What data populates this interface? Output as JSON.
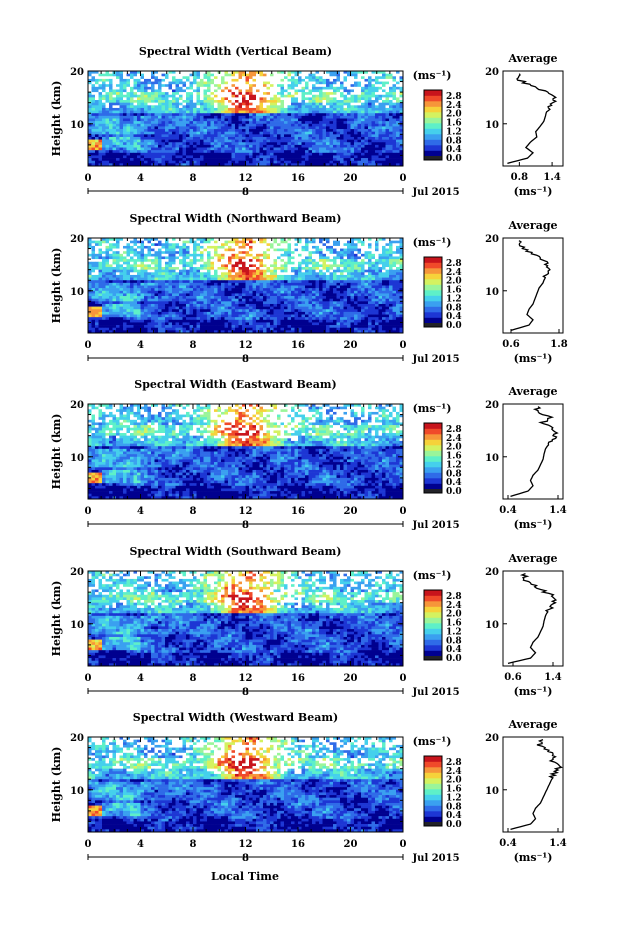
{
  "colors": {
    "colormap": [
      "#00008f",
      "#1d36d4",
      "#2f6be8",
      "#3aa0f0",
      "#45d0ec",
      "#5ef0c8",
      "#9af59a",
      "#d4f260",
      "#f6d23a",
      "#f6963a",
      "#f04a2a",
      "#c8141c"
    ],
    "missing": "#ffffff",
    "colorbar_bottom": "#222228",
    "line": "#000000"
  },
  "xlabel": "Local Time",
  "chart_data": [
    {
      "type": "heatmap",
      "title": "Spectral Width (Vertical Beam)",
      "ylabel": "Height (km)",
      "x_ticks": [
        "0",
        "4",
        "8",
        "12",
        "16",
        "20",
        "0"
      ],
      "xlim": [
        0,
        24
      ],
      "y_ticks": [
        "20",
        "10"
      ],
      "ylim": [
        2,
        20
      ],
      "date_marker": "8",
      "date_label": "Jul 2015",
      "colorbar": {
        "unit": "(ms⁻¹)",
        "ticks": [
          "2.8",
          "2.4",
          "2.0",
          "1.6",
          "1.2",
          "0.8",
          "0.4",
          "0.0"
        ],
        "range": [
          0.0,
          2.8
        ]
      },
      "profile": {
        "title": "Average",
        "x_ticks": [
          "0.8",
          "1.4"
        ],
        "xlim": [
          0.5,
          1.6
        ],
        "xlabel": "(ms⁻¹)",
        "ylim": [
          2,
          20
        ],
        "y_ticks": [
          "20",
          "10"
        ],
        "heights": [
          2.5,
          3.5,
          4.5,
          5.5,
          6.5,
          7.5,
          8.5,
          9.5,
          10.5,
          11.5,
          12.5,
          13.5,
          14.5,
          15.5,
          16.5,
          17.5,
          18.5,
          19.5
        ],
        "values": [
          0.58,
          0.95,
          1.05,
          0.92,
          1.0,
          1.12,
          1.1,
          1.18,
          1.25,
          1.28,
          1.3,
          1.38,
          1.45,
          1.4,
          1.2,
          0.95,
          0.75,
          0.8
        ]
      }
    },
    {
      "type": "heatmap",
      "title": "Spectral Width (Northward Beam)",
      "ylabel": "Height (km)",
      "x_ticks": [
        "0",
        "4",
        "8",
        "12",
        "16",
        "20",
        "0"
      ],
      "xlim": [
        0,
        24
      ],
      "y_ticks": [
        "20",
        "10"
      ],
      "ylim": [
        2,
        20
      ],
      "date_marker": "8",
      "date_label": "Jul 2015",
      "colorbar": {
        "unit": "(ms⁻¹)",
        "ticks": [
          "2.8",
          "2.4",
          "2.0",
          "1.6",
          "1.2",
          "0.8",
          "0.4",
          "0.0"
        ],
        "range": [
          0.0,
          2.8
        ]
      },
      "profile": {
        "title": "Average",
        "x_ticks": [
          "0.6",
          "1.8"
        ],
        "xlim": [
          0.4,
          1.9
        ],
        "xlabel": "(ms⁻¹)",
        "ylim": [
          2,
          20
        ],
        "y_ticks": [
          "20",
          "10"
        ],
        "heights": [
          2.5,
          3.5,
          4.5,
          5.5,
          6.5,
          7.5,
          8.5,
          9.5,
          10.5,
          11.5,
          12.5,
          13.5,
          14.5,
          15.5,
          16.5,
          17.5,
          18.5,
          19.5
        ],
        "values": [
          0.6,
          1.05,
          1.15,
          1.0,
          1.05,
          1.15,
          1.2,
          1.25,
          1.3,
          1.4,
          1.45,
          1.5,
          1.55,
          1.45,
          1.3,
          1.0,
          0.85,
          0.8
        ]
      }
    },
    {
      "type": "heatmap",
      "title": "Spectral Width (Eastward Beam)",
      "ylabel": "Height (km)",
      "x_ticks": [
        "0",
        "4",
        "8",
        "12",
        "16",
        "20",
        "0"
      ],
      "xlim": [
        0,
        24
      ],
      "y_ticks": [
        "20",
        "10"
      ],
      "ylim": [
        2,
        20
      ],
      "date_marker": "8",
      "date_label": "Jul 2015",
      "colorbar": {
        "unit": "(ms⁻¹)",
        "ticks": [
          "2.8",
          "2.4",
          "2.0",
          "1.6",
          "1.2",
          "0.8",
          "0.4",
          "0.0"
        ],
        "range": [
          0.0,
          2.8
        ]
      },
      "profile": {
        "title": "Average",
        "x_ticks": [
          "0.4",
          "1.4"
        ],
        "xlim": [
          0.3,
          1.5
        ],
        "xlabel": "(ms⁻¹)",
        "ylim": [
          2,
          20
        ],
        "y_ticks": [
          "20",
          "10"
        ],
        "heights": [
          2.5,
          3.5,
          4.5,
          5.5,
          6.5,
          7.5,
          8.5,
          9.5,
          10.5,
          11.5,
          12.5,
          13.5,
          14.5,
          15.5,
          16.5,
          17.5,
          18.5,
          19.5
        ],
        "values": [
          0.45,
          0.8,
          0.9,
          0.85,
          0.9,
          1.0,
          1.05,
          1.1,
          1.12,
          1.15,
          1.22,
          1.3,
          1.35,
          1.3,
          1.1,
          1.25,
          0.95,
          1.0
        ]
      }
    },
    {
      "type": "heatmap",
      "title": "Spectral Width (Southward Beam)",
      "ylabel": "Height (km)",
      "x_ticks": [
        "0",
        "4",
        "8",
        "12",
        "16",
        "20",
        "0"
      ],
      "xlim": [
        0,
        24
      ],
      "y_ticks": [
        "20",
        "10"
      ],
      "ylim": [
        2,
        20
      ],
      "date_marker": "8",
      "date_label": "Jul 2015",
      "colorbar": {
        "unit": "(ms⁻¹)",
        "ticks": [
          "2.8",
          "2.4",
          "2.0",
          "1.6",
          "1.2",
          "0.8",
          "0.4",
          "0.0"
        ],
        "range": [
          0.0,
          2.8
        ]
      },
      "profile": {
        "title": "Average",
        "x_ticks": [
          "0.6",
          "1.4"
        ],
        "xlim": [
          0.4,
          1.6
        ],
        "xlabel": "(ms⁻¹)",
        "ylim": [
          2,
          20
        ],
        "y_ticks": [
          "20",
          "10"
        ],
        "heights": [
          2.5,
          3.5,
          4.5,
          5.5,
          6.5,
          7.5,
          8.5,
          9.5,
          10.5,
          11.5,
          12.5,
          13.5,
          14.5,
          15.5,
          16.5,
          17.5,
          18.5,
          19.5
        ],
        "values": [
          0.5,
          0.95,
          1.05,
          0.95,
          1.0,
          1.1,
          1.15,
          1.2,
          1.22,
          1.25,
          1.3,
          1.4,
          1.45,
          1.35,
          1.15,
          1.0,
          0.8,
          0.85
        ]
      }
    },
    {
      "type": "heatmap",
      "title": "Spectral Width (Westward Beam)",
      "ylabel": "Height (km)",
      "x_ticks": [
        "0",
        "4",
        "8",
        "12",
        "16",
        "20",
        "0"
      ],
      "xlim": [
        0,
        24
      ],
      "y_ticks": [
        "20",
        "10"
      ],
      "ylim": [
        2,
        20
      ],
      "date_marker": "8",
      "date_label": "Jul 2015",
      "colorbar": {
        "unit": "(ms⁻¹)",
        "ticks": [
          "2.8",
          "2.4",
          "2.0",
          "1.6",
          "1.2",
          "0.8",
          "0.4",
          "0.0"
        ],
        "range": [
          0.0,
          2.8
        ]
      },
      "profile": {
        "title": "Average",
        "x_ticks": [
          "0.4",
          "1.4"
        ],
        "xlim": [
          0.3,
          1.5
        ],
        "xlabel": "(ms⁻¹)",
        "ylim": [
          2,
          20
        ],
        "y_ticks": [
          "20",
          "10"
        ],
        "heights": [
          2.5,
          3.5,
          4.5,
          5.5,
          6.5,
          7.5,
          8.5,
          9.5,
          10.5,
          11.5,
          12.5,
          13.5,
          14.5,
          15.5,
          16.5,
          17.5,
          18.5,
          19.5
        ],
        "values": [
          0.45,
          0.85,
          0.95,
          0.9,
          0.95,
          1.05,
          1.1,
          1.15,
          1.2,
          1.25,
          1.3,
          1.35,
          1.45,
          1.25,
          1.35,
          1.2,
          1.0,
          1.1
        ]
      }
    }
  ]
}
